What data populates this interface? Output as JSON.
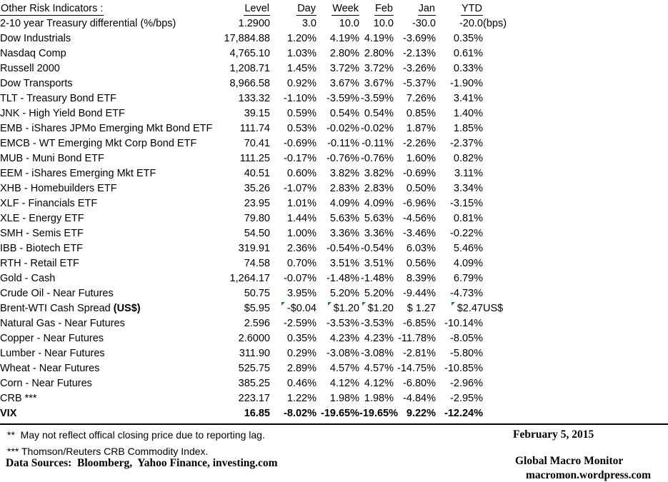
{
  "title": "Other Risk Indicators :",
  "columns": {
    "level": "Level",
    "day": "Day",
    "week": "Week",
    "feb": "Feb",
    "jan": "Jan",
    "ytd": "YTD"
  },
  "rows": [
    {
      "name": "2-10 year Treasury differential (%/bps)",
      "level": "1.2900",
      "day": "3.0",
      "week": "10.0",
      "feb": "10.0",
      "jan": "-30.0",
      "ytd": "-20.0",
      "annot": "(bps)"
    },
    {
      "name": "Dow Industrials",
      "level": "17,884.88",
      "day": "1.20%",
      "week": "4.19%",
      "feb": "4.19%",
      "jan": "-3.69%",
      "ytd": "0.35%"
    },
    {
      "name": "Nasdaq Comp",
      "level": "4,765.10",
      "day": "1.03%",
      "week": "2.80%",
      "feb": "2.80%",
      "jan": "-2.13%",
      "ytd": "0.61%"
    },
    {
      "name": "Russell 2000",
      "level": "1,208.71",
      "day": "1.45%",
      "week": "3.72%",
      "feb": "3.72%",
      "jan": "-3.26%",
      "ytd": "0.33%"
    },
    {
      "name": "Dow Transports",
      "level": "8,966.58",
      "day": "0.92%",
      "week": "3.67%",
      "feb": "3.67%",
      "jan": "-5.37%",
      "ytd": "-1.90%"
    },
    {
      "name": "TLT - Treasury Bond ETF",
      "level": "133.32",
      "day": "-1.10%",
      "week": "-3.59%",
      "feb": "-3.59%",
      "jan": "7.26%",
      "ytd": "3.41%"
    },
    {
      "name": "JNK - High Yield Bond ETF",
      "level": "39.15",
      "day": "0.59%",
      "week": "0.54%",
      "feb": "0.54%",
      "jan": "0.85%",
      "ytd": "1.40%"
    },
    {
      "name": "EMB - iShares JPMo Emerging Mkt Bond ETF",
      "level": "111.74",
      "day": "0.53%",
      "week": "-0.02%",
      "feb": "-0.02%",
      "jan": "1.87%",
      "ytd": "1.85%"
    },
    {
      "name": "EMCB - WT Emerging Mkt Corp Bond ETF",
      "level": "70.41",
      "day": "-0.69%",
      "week": "-0.11%",
      "feb": "-0.11%",
      "jan": "-2.26%",
      "ytd": "-2.37%"
    },
    {
      "name": "MUB - Muni Bond ETF",
      "level": "111.25",
      "day": "-0.17%",
      "week": "-0.76%",
      "feb": "-0.76%",
      "jan": "1.60%",
      "ytd": "0.82%"
    },
    {
      "name": "EEM - iShares Emerging Mkt ETF",
      "level": "40.51",
      "day": "0.60%",
      "week": "3.82%",
      "feb": "3.82%",
      "jan": "-0.69%",
      "ytd": "3.11%"
    },
    {
      "name": "XHB - Homebuilders ETF",
      "level": "35.26",
      "day": "-1.07%",
      "week": "2.83%",
      "feb": "2.83%",
      "jan": "0.50%",
      "ytd": "3.34%"
    },
    {
      "name": "XLF - Financials ETF",
      "level": "23.95",
      "day": "1.01%",
      "week": "4.09%",
      "feb": "4.09%",
      "jan": "-6.96%",
      "ytd": "-3.15%"
    },
    {
      "name": "XLE - Energy ETF",
      "level": "79.80",
      "day": "1.44%",
      "week": "5.63%",
      "feb": "5.63%",
      "jan": "-4.56%",
      "ytd": "0.81%"
    },
    {
      "name": "SMH - Semis ETF",
      "level": "54.50",
      "day": "1.00%",
      "week": "3.36%",
      "feb": "3.36%",
      "jan": "-3.46%",
      "ytd": "-0.22%"
    },
    {
      "name": "IBB - Biotech ETF",
      "level": "319.91",
      "day": "2.36%",
      "week": "-0.54%",
      "feb": "-0.54%",
      "jan": "6.03%",
      "ytd": "5.46%"
    },
    {
      "name": "RTH - Retail ETF",
      "level": "74.58",
      "day": "0.70%",
      "week": "3.51%",
      "feb": "3.51%",
      "jan": "0.56%",
      "ytd": "4.09%"
    },
    {
      "name": "Gold - Cash",
      "level": "1,264.17",
      "day": "-0.07%",
      "week": "-1.48%",
      "feb": "-1.48%",
      "jan": "8.39%",
      "ytd": "6.79%"
    },
    {
      "name": "Crude Oil - Near Futures",
      "level": "50.75",
      "day": "3.95%",
      "week": "5.20%",
      "feb": "5.20%",
      "jan": "-9.44%",
      "ytd": "-4.73%"
    },
    {
      "name": "Brent-WTI Cash Spread ",
      "name_suffix": "(US$)",
      "level": "$5.95",
      "day": "-$0.04",
      "week": "$1.20",
      "feb": "$1.20",
      "jan": "$ 1.27",
      "ytd": "$2.47",
      "annot": "US$",
      "markers": [
        "day",
        "week",
        "feb",
        "ytd"
      ]
    },
    {
      "name": "Natural Gas - Near Futures",
      "level": "2.596",
      "day": "-2.59%",
      "week": "-3.53%",
      "feb": "-3.53%",
      "jan": "-6.85%",
      "ytd": "-10.14%"
    },
    {
      "name": "Copper - Near Futures",
      "level": "2.6000",
      "day": "0.35%",
      "week": "4.23%",
      "feb": "4.23%",
      "jan": "-11.78%",
      "ytd": "-8.05%"
    },
    {
      "name": "Lumber - Near Futures",
      "level": "311.90",
      "day": "0.29%",
      "week": "-3.08%",
      "feb": "-3.08%",
      "jan": "-2.81%",
      "ytd": "-5.80%"
    },
    {
      "name": "Wheat - Near Futures",
      "level": "525.75",
      "day": "2.89%",
      "week": "4.57%",
      "feb": "4.57%",
      "jan": "-14.75%",
      "ytd": "-10.85%"
    },
    {
      "name": "Corn - Near Futures",
      "level": "385.25",
      "day": "0.46%",
      "week": "4.12%",
      "feb": "4.12%",
      "jan": "-6.80%",
      "ytd": "-2.96%"
    },
    {
      "name": "CRB ***",
      "level": "223.17",
      "day": "1.22%",
      "week": "1.98%",
      "feb": "1.98%",
      "jan": "-4.84%",
      "ytd": "-2.95%"
    },
    {
      "name": "VIX",
      "bold_row": true,
      "level": "16.85",
      "day": "-8.02%",
      "week": "-19.65%",
      "feb": "-19.65%",
      "jan": "9.22%",
      "ytd": "-12.24%"
    }
  ],
  "footnotes": {
    "line1": "**  May not reflect offical closing price due to reporting lag.",
    "line2": "*** Thomson/Reuters CRB Commodity Index.",
    "data_sources": "Data Sources:  Bloomberg,  Yahoo Finance, investing.com"
  },
  "footer_right": {
    "date": "February 5, 2015",
    "brand": "Global Macro Monitor",
    "url": "macromon.wordpress.com"
  },
  "colors": {
    "background": "#ffffff",
    "text": "#000000",
    "marker_green": "#1e7e34"
  }
}
